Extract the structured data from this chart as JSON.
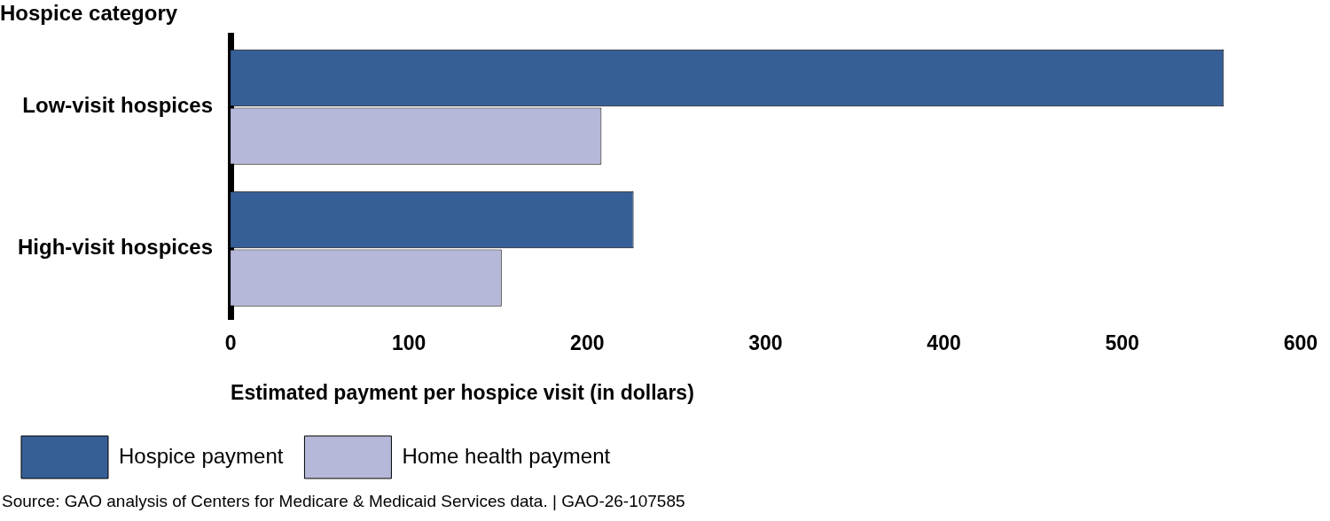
{
  "chart_data": {
    "type": "bar",
    "orientation": "horizontal",
    "title": "Hospice category",
    "xlabel": "Estimated payment per hospice visit (in dollars)",
    "categories": [
      "Low-visit hospices",
      "High-visit hospices"
    ],
    "series": [
      {
        "name": "Hospice payment",
        "color": "#375f97",
        "values": [
          557,
          226
        ]
      },
      {
        "name": "Home health payment",
        "color": "#b5b8d9",
        "values": [
          208,
          152
        ]
      }
    ],
    "xlim": [
      0,
      600
    ],
    "xticks": [
      0,
      100,
      200,
      300,
      400,
      500,
      600
    ],
    "grid": false,
    "legend": "bottom",
    "annotations": [
      "Source: GAO analysis of Centers for Medicare & Medicaid Services data.  |  GAO-26-107585"
    ]
  }
}
